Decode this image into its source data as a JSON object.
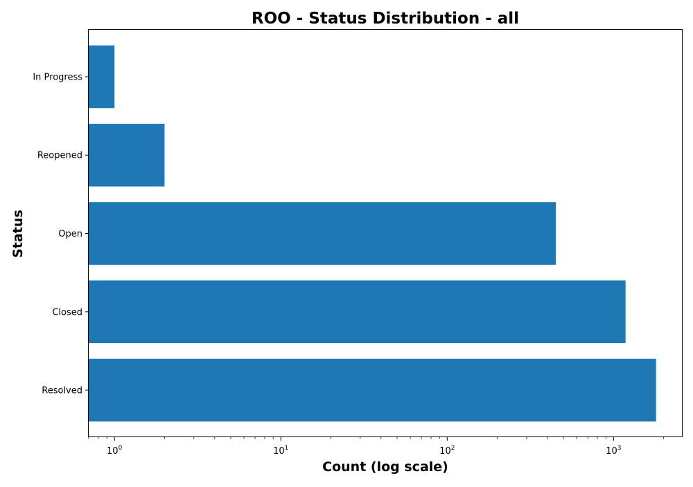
{
  "chart_data": {
    "type": "bar",
    "orientation": "horizontal",
    "title": "ROO - Status Distribution - all",
    "xlabel": "Count (log scale)",
    "ylabel": "Status",
    "x_scale": "log",
    "xlim": [
      0.7,
      2600
    ],
    "x_ticks": [
      1,
      10,
      100,
      1000
    ],
    "x_tick_labels": [
      {
        "base": "10",
        "exp": "0"
      },
      {
        "base": "10",
        "exp": "1"
      },
      {
        "base": "10",
        "exp": "2"
      },
      {
        "base": "10",
        "exp": "3"
      }
    ],
    "categories": [
      "In Progress",
      "Reopened",
      "Open",
      "Closed",
      "Resolved"
    ],
    "values": [
      1,
      2,
      450,
      1180,
      1800
    ],
    "bar_color": "#1f77b4",
    "grid": false
  }
}
